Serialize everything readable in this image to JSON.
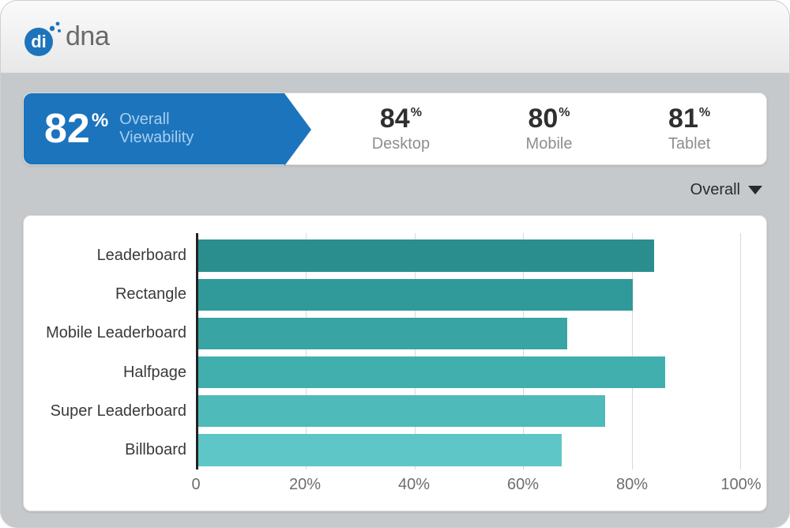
{
  "brand": {
    "name": "dna",
    "mark_color": "#1c74bc",
    "text_color": "#6a6a6a"
  },
  "summary": {
    "overall": {
      "value": "82",
      "unit": "%",
      "label_l1": "Overall",
      "label_l2": "Viewability",
      "bg": "#1c74bc"
    },
    "metrics": [
      {
        "value": "84",
        "unit": "%",
        "label": "Desktop"
      },
      {
        "value": "80",
        "unit": "%",
        "label": "Mobile"
      },
      {
        "value": "81",
        "unit": "%",
        "label": "Tablet"
      }
    ]
  },
  "dropdown": {
    "selected": "Overall"
  },
  "chart": {
    "type": "bar-horizontal",
    "xmin": 0,
    "xmax": 100,
    "ticks": [
      {
        "v": 0,
        "label": "0"
      },
      {
        "v": 20,
        "label": "20%"
      },
      {
        "v": 40,
        "label": "40%"
      },
      {
        "v": 60,
        "label": "60%"
      },
      {
        "v": 80,
        "label": "80%"
      },
      {
        "v": 100,
        "label": "100%"
      }
    ],
    "grid_color": "#d8d8d8",
    "axis_color": "#222222",
    "label_fontsize": 20,
    "bars": [
      {
        "label": "Leaderboard",
        "value": 84,
        "color": "#2a8e8e"
      },
      {
        "label": "Rectangle",
        "value": 80,
        "color": "#309999"
      },
      {
        "label": "Mobile Leaderboard",
        "value": 68,
        "color": "#38a4a4"
      },
      {
        "label": "Halfpage",
        "value": 86,
        "color": "#42afaf"
      },
      {
        "label": "Super Leaderboard",
        "value": 75,
        "color": "#4fbaba"
      },
      {
        "label": "Billboard",
        "value": 67,
        "color": "#5ec6c6"
      }
    ]
  },
  "colors": {
    "card_bg": "#c6c9cb",
    "panel_bg": "#ffffff",
    "border": "#d9d9d9"
  }
}
